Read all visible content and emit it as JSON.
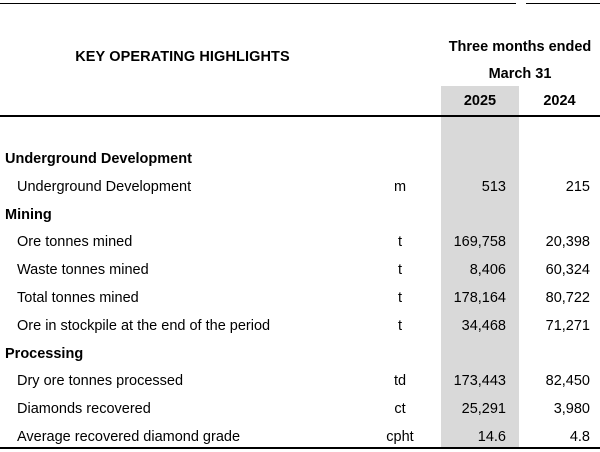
{
  "header": {
    "title": "KEY OPERATING HIGHLIGHTS",
    "period_line1": "Three months ended",
    "period_line2": "March 31",
    "years": [
      "2025",
      "2024"
    ]
  },
  "rows": [
    {
      "type": "section",
      "label": "Underground Development"
    },
    {
      "type": "data",
      "label": "Underground Development",
      "unit": "m",
      "v2025": "513",
      "v2024": "215"
    },
    {
      "type": "section",
      "label": "Mining"
    },
    {
      "type": "data",
      "label": "Ore tonnes mined",
      "unit": "t",
      "v2025": "169,758",
      "v2024": "20,398"
    },
    {
      "type": "data",
      "label": "Waste tonnes mined",
      "unit": "t",
      "v2025": "8,406",
      "v2024": "60,324"
    },
    {
      "type": "data",
      "label": "Total tonnes mined",
      "unit": "t",
      "v2025": "178,164",
      "v2024": "80,722"
    },
    {
      "type": "data",
      "label": "Ore in stockpile at the end of the period",
      "unit": "t",
      "v2025": "34,468",
      "v2024": "71,271"
    },
    {
      "type": "section",
      "label": "Processing"
    },
    {
      "type": "data",
      "label": "Dry ore tonnes processed",
      "unit": "td",
      "v2025": "173,443",
      "v2024": "82,450"
    },
    {
      "type": "data",
      "label": "Diamonds recovered",
      "unit": "ct",
      "v2025": "25,291",
      "v2024": "3,980"
    },
    {
      "type": "data",
      "label": "Average recovered diamond grade",
      "unit": "cpht",
      "v2025": "14.6",
      "v2024": "4.8"
    }
  ]
}
